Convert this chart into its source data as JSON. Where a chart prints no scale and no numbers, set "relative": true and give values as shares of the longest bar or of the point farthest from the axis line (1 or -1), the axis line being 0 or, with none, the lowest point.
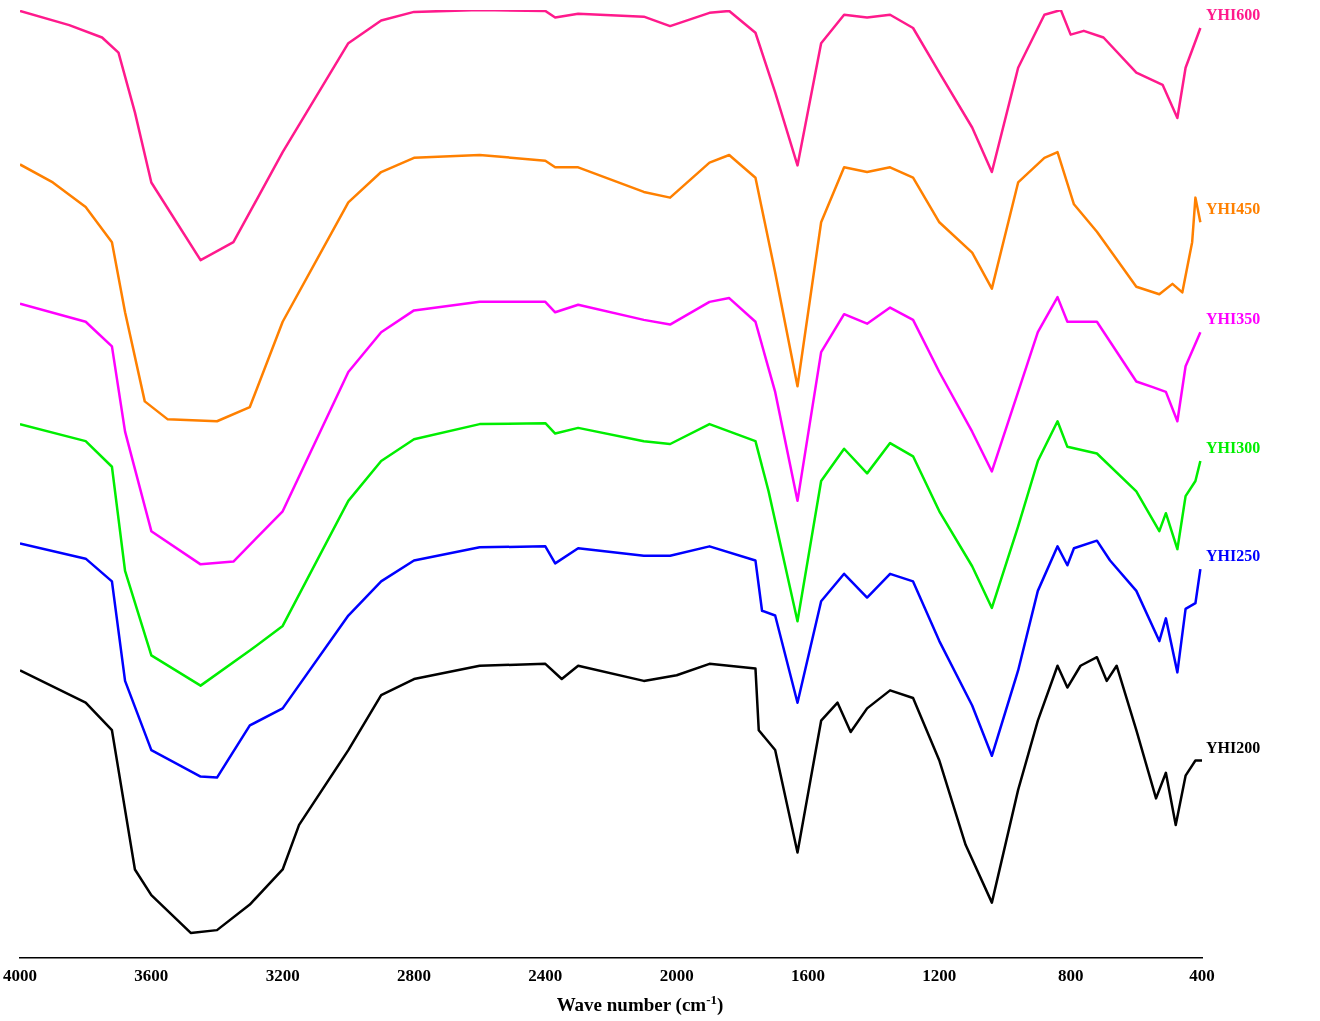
{
  "chart_data": {
    "type": "line",
    "xlabel": "Wave number (cm$^{-1}$)",
    "relative": true,
    "xlim": [
      4000,
      400
    ],
    "xticks": [
      4000,
      3600,
      3200,
      2800,
      2400,
      2000,
      1600,
      1200,
      800,
      400
    ],
    "tick_labels": "x",
    "grid": false,
    "legend": false,
    "marker": "none",
    "series": [
      {
        "name": "YHI600",
        "color": "#ff1a8c",
        "x": [
          4000,
          3850,
          3750,
          3700,
          3650,
          3600,
          3450,
          3350,
          3200,
          3000,
          2900,
          2800,
          2600,
          2400,
          2370,
          2300,
          2100,
          2020,
          1900,
          1840,
          1760,
          1700,
          1632,
          1560,
          1490,
          1420,
          1350,
          1280,
          1200,
          1100,
          1040,
          960,
          880,
          830,
          800,
          760,
          700,
          600,
          520,
          475,
          450,
          405
        ],
        "values": [
          0.999,
          0.984,
          0.971,
          0.955,
          0.892,
          0.818,
          0.736,
          0.755,
          0.85,
          0.965,
          0.989,
          0.998,
          1.0,
          0.999,
          0.992,
          0.996,
          0.993,
          0.983,
          0.997,
          0.999,
          0.976,
          0.913,
          0.836,
          0.965,
          0.995,
          0.992,
          0.995,
          0.981,
          0.934,
          0.876,
          0.829,
          0.939,
          0.995,
          1.0,
          0.974,
          0.978,
          0.971,
          0.934,
          0.921,
          0.886,
          0.939,
          0.981
        ]
      },
      {
        "name": "YHI450",
        "color": "#ff8000",
        "x": [
          4000,
          3900,
          3800,
          3720,
          3680,
          3620,
          3550,
          3400,
          3300,
          3200,
          3000,
          2900,
          2800,
          2600,
          2400,
          2370,
          2300,
          2100,
          2020,
          1900,
          1840,
          1760,
          1700,
          1632,
          1560,
          1490,
          1420,
          1350,
          1280,
          1200,
          1100,
          1040,
          960,
          880,
          840,
          790,
          720,
          600,
          530,
          490,
          460,
          430,
          420,
          405
        ],
        "values": [
          0.837,
          0.818,
          0.792,
          0.755,
          0.681,
          0.587,
          0.568,
          0.566,
          0.581,
          0.671,
          0.797,
          0.829,
          0.844,
          0.847,
          0.841,
          0.834,
          0.834,
          0.808,
          0.802,
          0.839,
          0.847,
          0.823,
          0.723,
          0.603,
          0.776,
          0.834,
          0.829,
          0.834,
          0.823,
          0.776,
          0.744,
          0.706,
          0.818,
          0.844,
          0.85,
          0.795,
          0.766,
          0.708,
          0.7,
          0.711,
          0.702,
          0.755,
          0.802,
          0.776
        ]
      },
      {
        "name": "YHI350",
        "color": "#ff00ff",
        "x": [
          4000,
          3800,
          3720,
          3680,
          3600,
          3450,
          3350,
          3200,
          3000,
          2900,
          2800,
          2600,
          2400,
          2370,
          2300,
          2100,
          2020,
          1900,
          1840,
          1760,
          1700,
          1632,
          1560,
          1490,
          1420,
          1350,
          1280,
          1200,
          1100,
          1040,
          960,
          900,
          840,
          810,
          720,
          600,
          550,
          510,
          475,
          450,
          405
        ],
        "values": [
          0.69,
          0.671,
          0.645,
          0.555,
          0.45,
          0.415,
          0.418,
          0.471,
          0.618,
          0.66,
          0.683,
          0.692,
          0.692,
          0.681,
          0.689,
          0.673,
          0.668,
          0.692,
          0.696,
          0.671,
          0.597,
          0.482,
          0.639,
          0.679,
          0.669,
          0.686,
          0.673,
          0.618,
          0.555,
          0.513,
          0.597,
          0.66,
          0.697,
          0.671,
          0.671,
          0.608,
          0.602,
          0.597,
          0.566,
          0.624,
          0.66
        ]
      },
      {
        "name": "YHI300",
        "color": "#00ee00",
        "x": [
          4000,
          3800,
          3720,
          3680,
          3600,
          3450,
          3300,
          3200,
          3000,
          2900,
          2800,
          2600,
          2400,
          2370,
          2300,
          2100,
          2020,
          1900,
          1760,
          1720,
          1632,
          1560,
          1490,
          1420,
          1350,
          1280,
          1200,
          1100,
          1040,
          960,
          900,
          840,
          810,
          720,
          600,
          530,
          510,
          475,
          450,
          420,
          405
        ],
        "values": [
          0.563,
          0.545,
          0.518,
          0.408,
          0.319,
          0.287,
          0.324,
          0.35,
          0.482,
          0.524,
          0.547,
          0.563,
          0.564,
          0.553,
          0.559,
          0.545,
          0.542,
          0.563,
          0.545,
          0.492,
          0.355,
          0.503,
          0.537,
          0.511,
          0.543,
          0.529,
          0.471,
          0.413,
          0.369,
          0.455,
          0.524,
          0.566,
          0.539,
          0.532,
          0.492,
          0.45,
          0.469,
          0.431,
          0.487,
          0.503,
          0.524
        ]
      },
      {
        "name": "YHI250",
        "color": "#0000ff",
        "x": [
          4000,
          3800,
          3720,
          3680,
          3600,
          3450,
          3400,
          3300,
          3200,
          3000,
          2900,
          2800,
          2600,
          2400,
          2370,
          2300,
          2100,
          2020,
          1900,
          1760,
          1740,
          1700,
          1632,
          1560,
          1490,
          1420,
          1350,
          1280,
          1200,
          1100,
          1040,
          960,
          900,
          840,
          810,
          790,
          720,
          680,
          600,
          530,
          510,
          475,
          450,
          420,
          405
        ],
        "values": [
          0.437,
          0.421,
          0.397,
          0.292,
          0.219,
          0.191,
          0.19,
          0.245,
          0.263,
          0.361,
          0.397,
          0.419,
          0.433,
          0.434,
          0.416,
          0.432,
          0.424,
          0.424,
          0.434,
          0.419,
          0.366,
          0.361,
          0.269,
          0.376,
          0.405,
          0.38,
          0.405,
          0.397,
          0.334,
          0.266,
          0.213,
          0.303,
          0.387,
          0.434,
          0.414,
          0.432,
          0.44,
          0.419,
          0.387,
          0.334,
          0.358,
          0.301,
          0.368,
          0.374,
          0.41
        ]
      },
      {
        "name": "YHI200",
        "color": "#000000",
        "x": [
          4000,
          3800,
          3720,
          3650,
          3600,
          3480,
          3400,
          3300,
          3200,
          3150,
          3000,
          2900,
          2800,
          2600,
          2400,
          2350,
          2300,
          2100,
          2000,
          1900,
          1760,
          1750,
          1700,
          1632,
          1560,
          1510,
          1470,
          1420,
          1350,
          1280,
          1200,
          1120,
          1040,
          960,
          900,
          840,
          810,
          770,
          720,
          690,
          660,
          600,
          540,
          510,
          480,
          450,
          420,
          400
        ],
        "values": [
          0.303,
          0.269,
          0.24,
          0.093,
          0.066,
          0.026,
          0.029,
          0.056,
          0.093,
          0.14,
          0.219,
          0.277,
          0.294,
          0.308,
          0.31,
          0.294,
          0.308,
          0.292,
          0.298,
          0.31,
          0.305,
          0.24,
          0.219,
          0.111,
          0.25,
          0.269,
          0.238,
          0.263,
          0.282,
          0.274,
          0.208,
          0.119,
          0.058,
          0.177,
          0.25,
          0.308,
          0.285,
          0.308,
          0.317,
          0.292,
          0.308,
          0.24,
          0.168,
          0.195,
          0.14,
          0.192,
          0.208,
          0.208
        ]
      }
    ]
  }
}
